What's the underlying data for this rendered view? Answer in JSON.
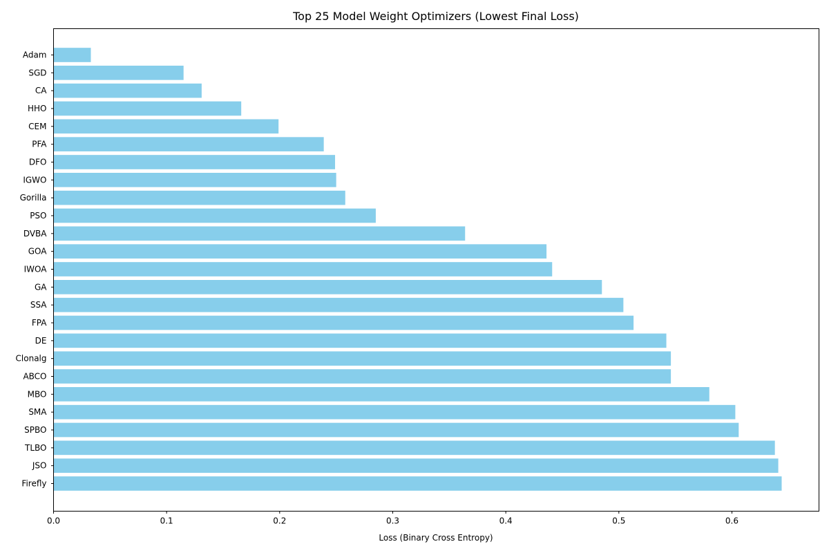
{
  "chart_data": {
    "type": "bar",
    "orientation": "horizontal",
    "title": "Top 25 Model Weight Optimizers (Lowest Final Loss)",
    "xlabel": "Loss (Binary Cross Entropy)",
    "ylabel": "",
    "xlim": [
      0,
      0.677
    ],
    "xticks": [
      0.0,
      0.1,
      0.2,
      0.3,
      0.4,
      0.5,
      0.6
    ],
    "xtick_labels": [
      "0.0",
      "0.1",
      "0.2",
      "0.3",
      "0.4",
      "0.5",
      "0.6"
    ],
    "bar_color": "#87CEEB",
    "grid": false,
    "categories": [
      "Adam",
      "SGD",
      "CA",
      "HHO",
      "CEM",
      "PFA",
      "DFO",
      "IGWO",
      "Gorilla",
      "PSO",
      "DVBA",
      "GOA",
      "IWOA",
      "GA",
      "SSA",
      "FPA",
      "DE",
      "Clonalg",
      "ABCO",
      "MBO",
      "SMA",
      "SPBO",
      "TLBO",
      "JSO",
      "Firefly"
    ],
    "values": [
      0.033,
      0.115,
      0.131,
      0.166,
      0.199,
      0.239,
      0.249,
      0.25,
      0.258,
      0.285,
      0.364,
      0.436,
      0.441,
      0.485,
      0.504,
      0.513,
      0.542,
      0.546,
      0.546,
      0.58,
      0.603,
      0.606,
      0.638,
      0.641,
      0.644
    ]
  }
}
